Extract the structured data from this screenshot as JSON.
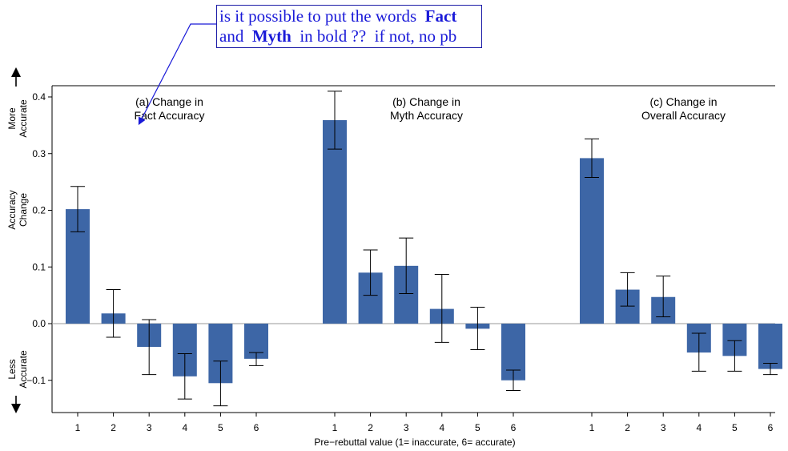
{
  "note": {
    "line1_before": "is it possible to put the words  ",
    "line1_bold": "Fact",
    "line2_before": "and  ",
    "line2_bold": "Myth",
    "line2_after": "  in bold ??  if not, no pb",
    "color": "#1a1ad8"
  },
  "side_labels": {
    "more": [
      "More",
      "Accurate"
    ],
    "accuracy": [
      "Accuracy",
      "Change"
    ],
    "less": [
      "Less",
      "Accurate"
    ]
  },
  "chart_data": {
    "type": "bar",
    "xlabel": "Pre−rebuttal value (1= inaccurate, 6= accurate)",
    "ylim": [
      -0.16,
      0.42
    ],
    "yticks": [
      -0.1,
      0.0,
      0.1,
      0.2,
      0.3,
      0.4
    ],
    "ytick_labels": [
      "−0.1",
      "0.0",
      "0.1",
      "0.2",
      "0.3",
      "0.4"
    ],
    "bar_color": "#3d66a6",
    "panels": [
      {
        "title": [
          "(a) Change in",
          "Fact Accuracy"
        ],
        "categories": [
          "1",
          "2",
          "3",
          "4",
          "5",
          "6"
        ],
        "values": [
          0.202,
          0.018,
          -0.041,
          -0.093,
          -0.105,
          -0.062
        ],
        "err_low": [
          0.162,
          -0.024,
          -0.09,
          -0.133,
          -0.145,
          -0.074
        ],
        "err_high": [
          0.242,
          0.06,
          0.007,
          -0.053,
          -0.066,
          -0.051
        ]
      },
      {
        "title": [
          "(b) Change in",
          "Myth Accuracy"
        ],
        "categories": [
          "1",
          "2",
          "3",
          "4",
          "5",
          "6"
        ],
        "values": [
          0.359,
          0.09,
          0.102,
          0.026,
          -0.009,
          -0.1
        ],
        "err_low": [
          0.308,
          0.05,
          0.053,
          -0.033,
          -0.046,
          -0.118
        ],
        "err_high": [
          0.41,
          0.13,
          0.151,
          0.087,
          0.029,
          -0.082
        ]
      },
      {
        "title": [
          "(c) Change in",
          "Overall Accuracy"
        ],
        "categories": [
          "1",
          "2",
          "3",
          "4",
          "5",
          "6"
        ],
        "values": [
          0.292,
          0.06,
          0.047,
          -0.051,
          -0.057,
          -0.08
        ],
        "err_low": [
          0.258,
          0.031,
          0.012,
          -0.084,
          -0.084,
          -0.09
        ],
        "err_high": [
          0.326,
          0.09,
          0.084,
          -0.017,
          -0.03,
          -0.07
        ]
      }
    ]
  }
}
